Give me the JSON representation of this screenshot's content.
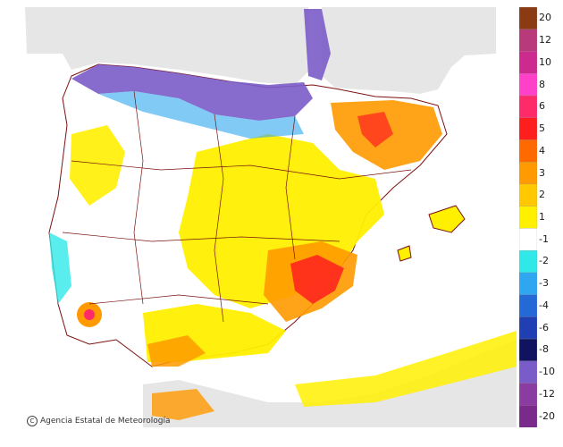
{
  "credit": {
    "icon": "copyright-icon",
    "text": "Agencia Estatal de Meteorología"
  },
  "legend": {
    "labels": [
      "20",
      "12",
      "10",
      "8",
      "6",
      "5",
      "4",
      "3",
      "2",
      "1",
      "-1",
      "-2",
      "-3",
      "-4",
      "-6",
      "-8",
      "-10",
      "-12",
      "-20"
    ],
    "colors": [
      "#8a3b14",
      "#b83a7a",
      "#cc2a8e",
      "#ff40c8",
      "#ff2a6a",
      "#ff1e1e",
      "#ff6a00",
      "#ff9a00",
      "#ffc800",
      "#fff000",
      "#ffffff",
      "#30e8e8",
      "#2fa6f0",
      "#246ad6",
      "#1f3fb2",
      "#101460",
      "#7a5cc8",
      "#8a3ca0",
      "#7a2a8a"
    ]
  },
  "colors": {
    "sea": "#ffffff",
    "land_outside": "#e6e6e6",
    "border": "#7a1010"
  }
}
